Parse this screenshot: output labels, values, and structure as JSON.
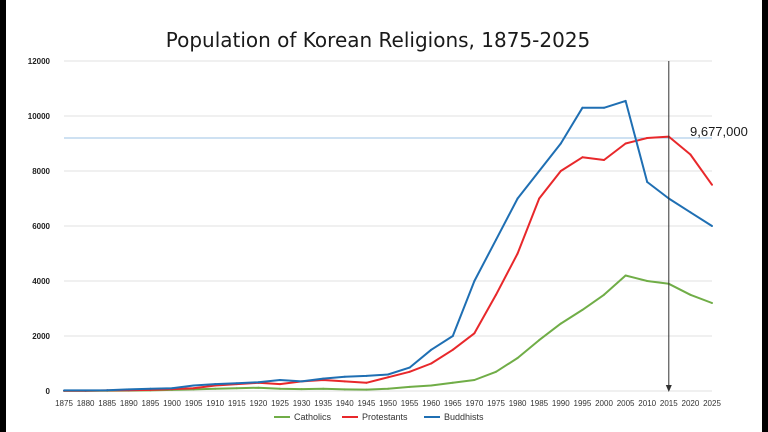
{
  "chart_data": {
    "type": "line",
    "title": "Population of Korean Religions, 1875-2025",
    "xlabel": "",
    "ylabel": "",
    "x": [
      1875,
      1880,
      1885,
      1890,
      1895,
      1900,
      1905,
      1910,
      1915,
      1920,
      1925,
      1930,
      1935,
      1940,
      1945,
      1950,
      1955,
      1960,
      1965,
      1970,
      1975,
      1980,
      1985,
      1990,
      1995,
      2000,
      2005,
      2010,
      2015,
      2020,
      2025
    ],
    "x_tick_labels": [
      "1875",
      "1880",
      "1885",
      "1890",
      "1895",
      "1900",
      "1905",
      "1910",
      "1915",
      "1920",
      "1925",
      "1930",
      "1935",
      "1940",
      "1945",
      "1950",
      "1955",
      "1960",
      "1965",
      "1970",
      "1975",
      "1980",
      "1985",
      "1990",
      "1995",
      "2000",
      "2005",
      "2010",
      "2015",
      "2020",
      "2025"
    ],
    "ylim": [
      0,
      12000
    ],
    "y_ticks": [
      0,
      2000,
      4000,
      6000,
      8000,
      10000,
      12000
    ],
    "y_tick_labels": [
      "0",
      "2000",
      "4000",
      "6000",
      "8000",
      "10000",
      "12000"
    ],
    "grid": "horizontal",
    "legend_position": "bottom",
    "series": [
      {
        "name": "Catholics",
        "color": "#70ad47",
        "values": [
          5,
          5,
          10,
          15,
          20,
          40,
          60,
          80,
          100,
          120,
          80,
          70,
          80,
          60,
          50,
          80,
          150,
          200,
          300,
          400,
          700,
          1200,
          1850,
          2450,
          2950,
          3500,
          4200,
          4000,
          3900,
          3500,
          3200
        ]
      },
      {
        "name": "Protestants",
        "color": "#e8282b",
        "values": [
          10,
          10,
          20,
          30,
          40,
          70,
          100,
          200,
          250,
          300,
          250,
          350,
          400,
          350,
          300,
          500,
          700,
          1000,
          1500,
          2100,
          3500,
          5000,
          7000,
          8000,
          8500,
          8400,
          9000,
          9200,
          9250,
          8600,
          7500
        ]
      },
      {
        "name": "Buddhists",
        "color": "#1f6fb3",
        "values": [
          20,
          20,
          30,
          60,
          80,
          100,
          200,
          250,
          280,
          320,
          400,
          350,
          450,
          520,
          550,
          600,
          850,
          1500,
          2000,
          4000,
          5500,
          7000,
          8000,
          9000,
          10300,
          10300,
          10550,
          7600,
          7000,
          6500,
          6000
        ]
      }
    ],
    "reference_line": {
      "y": 9200,
      "color": "#9dc3e6"
    },
    "marker": {
      "x": 2015,
      "color": "#333333"
    },
    "annotation": {
      "text": "9,677,000"
    }
  }
}
